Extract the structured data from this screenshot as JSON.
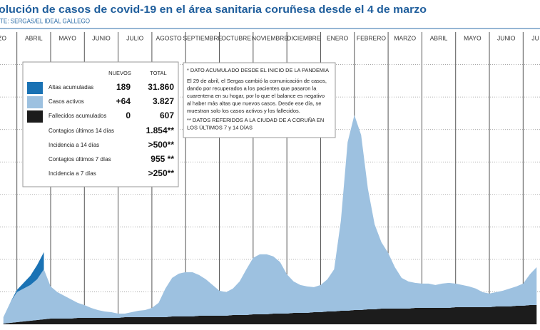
{
  "chart_data": {
    "type": "stacked-area",
    "title": "olución de casos de covid-19 en el área sanitaria coruñesa desde el 4 de marzo",
    "source": "TE: SERGAS/EL IDEAL GALLEGO",
    "categories": [
      "RZO",
      "ABRIL",
      "MAYO",
      "JUNIO",
      "JULIO",
      "AGOSTO",
      "SEPTIEMBRE",
      "OCTUBRE",
      "NOVIEMBRE",
      "DICIEMBRE",
      "ENERO",
      "FEBRERO",
      "MARZO",
      "ABRIL",
      "MAYO",
      "JUNIO",
      "JU"
    ],
    "xlim": [
      0.5,
      16.5
    ],
    "xticks": [
      1,
      2,
      3,
      4,
      5,
      6,
      7,
      8,
      9,
      10,
      11,
      12,
      13,
      14,
      15,
      16
    ],
    "ylim": [
      0,
      9000
    ],
    "yticks": [
      1000,
      2000,
      3000,
      4000,
      5000,
      6000,
      7000,
      8000
    ],
    "grid": true,
    "x": [
      0.6,
      0.8,
      1,
      1.2,
      1.4,
      1.6,
      1.8,
      2,
      2.2,
      2.4,
      2.6,
      2.8,
      3,
      3.2,
      3.4,
      3.6,
      3.8,
      4,
      4.2,
      4.4,
      4.6,
      4.8,
      5,
      5.2,
      5.4,
      5.6,
      5.8,
      6,
      6.2,
      6.4,
      6.6,
      6.8,
      7,
      7.2,
      7.4,
      7.6,
      7.8,
      8,
      8.2,
      8.4,
      8.6,
      8.8,
      9,
      9.2,
      9.4,
      9.6,
      9.8,
      10,
      10.2,
      10.4,
      10.6,
      10.8,
      11,
      11.2,
      11.4,
      11.6,
      11.8,
      12,
      12.2,
      12.4,
      12.6,
      12.8,
      13,
      13.2,
      13.4,
      13.6,
      13.8,
      14,
      14.2,
      14.4,
      14.6,
      14.8,
      15,
      15.2,
      15.4,
      15.6,
      15.8,
      16,
      16.2,
      16.4
    ],
    "series": [
      {
        "name": "Altas acumuladas",
        "color": "#1a72b4",
        "values": [
          null,
          0,
          66,
          176,
          286,
          440,
          528,
          null,
          null,
          null,
          null,
          null,
          null,
          null,
          null,
          null,
          null,
          null,
          null,
          null,
          null,
          null,
          null,
          null,
          null,
          null,
          null,
          null,
          null,
          null,
          null,
          null,
          null,
          null,
          null,
          null,
          null,
          null,
          null,
          null,
          null,
          null,
          null,
          null,
          null,
          null,
          null,
          null,
          null,
          null,
          null,
          null,
          null,
          null,
          null,
          null,
          null,
          null,
          null,
          null,
          null,
          null,
          null,
          null,
          null,
          null,
          null,
          null,
          null,
          null,
          null,
          null,
          null,
          null,
          null,
          null,
          null,
          null,
          null,
          null
        ]
      },
      {
        "name": "Casos activos",
        "color": "#9dc1e0",
        "values": [
          198,
          616,
          924,
          1012,
          1100,
          1254,
          1540,
          990,
          814,
          704,
          594,
          462,
          396,
          308,
          242,
          198,
          176,
          132,
          110,
          154,
          198,
          220,
          286,
          440,
          880,
          1188,
          1320,
          1364,
          1364,
          1254,
          1122,
          946,
          770,
          726,
          814,
          1034,
          1408,
          1738,
          1848,
          1848,
          1760,
          1584,
          1210,
          968,
          858,
          814,
          770,
          836,
          990,
          1298,
          2772,
          5192,
          6006,
          5390,
          3718,
          2618,
          2046,
          1716,
          1276,
          946,
          836,
          770,
          748,
          748,
          704,
          748,
          770,
          726,
          682,
          638,
          572,
          462,
          418,
          440,
          484,
          550,
          594,
          682,
          946,
          1166
        ]
      },
      {
        "name": "Fallecidos acumulados",
        "color": "#1c1c1c",
        "values": [
          22,
          44,
          66,
          88,
          110,
          132,
          154,
          176,
          176,
          176,
          176,
          198,
          198,
          198,
          198,
          198,
          198,
          198,
          220,
          220,
          220,
          220,
          220,
          220,
          220,
          242,
          242,
          242,
          242,
          264,
          264,
          264,
          264,
          264,
          286,
          286,
          286,
          308,
          308,
          308,
          330,
          330,
          330,
          352,
          352,
          352,
          374,
          374,
          396,
          396,
          418,
          418,
          440,
          440,
          462,
          462,
          484,
          484,
          484,
          484,
          484,
          506,
          506,
          506,
          506,
          506,
          506,
          528,
          528,
          528,
          528,
          528,
          528,
          550,
          550,
          550,
          572,
          572,
          594,
          594
        ]
      }
    ],
    "table": {
      "headers": [
        "NUEVOS",
        "TOTAL"
      ],
      "rows": [
        {
          "new": "189",
          "total": "31.860"
        },
        {
          "new": "+64",
          "total": "3.827"
        },
        {
          "new": "0",
          "total": "607"
        },
        {
          "label": "Contagios últimos 14 días",
          "total": "1.854**"
        },
        {
          "label": "Incidencia a 14 días",
          "total": ">500**"
        },
        {
          "label": "Contagios últimos 7 días",
          "total": "955 **"
        },
        {
          "label": "Incidencia a 7 días",
          "total": ">250**"
        }
      ]
    },
    "note": {
      "heading": "* DATO ACUMULADO DESDE EL INICIO DE LA PANDEMIA",
      "lines": [
        "El 29 de abril, el Sergas cambió la comunicación de casos,",
        "dando por recuperados a los pacientes que pasaron la",
        "cuarentena en su hogar, por lo que el balance es negativo",
        "al haber más altas que nuevos casos. Desde ese día, se",
        "muestran solo los casos activos y los fallecidos."
      ],
      "footnote": [
        "** DATOS REFERIDOS A LA CIUDAD DE A CORUÑA EN",
        "LOS ÚLTIMOS 7 y 14 DÍAS"
      ]
    }
  }
}
